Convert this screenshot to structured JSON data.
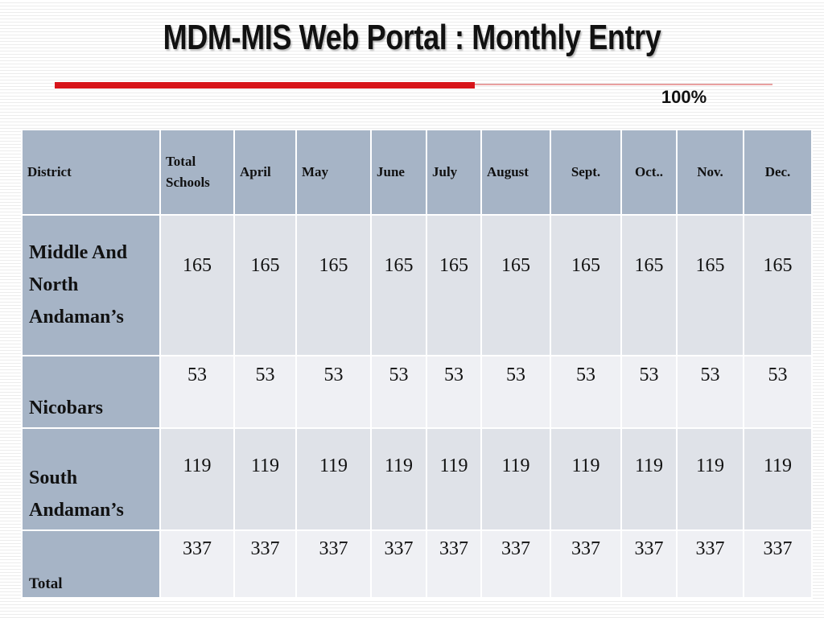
{
  "title": "MDM-MIS Web Portal : Monthly Entry",
  "percent": "100%",
  "table": {
    "headers": [
      "District",
      "Total Schools",
      "April",
      "May",
      "June",
      "July",
      "August",
      "Sept.",
      "Oct..",
      "Nov.",
      "Dec."
    ],
    "rows": [
      {
        "district": "Middle And North Andaman’s",
        "values": [
          "165",
          "165",
          "165",
          "165",
          "165",
          "165",
          "165",
          "165",
          "165",
          "165"
        ]
      },
      {
        "district": "Nicobars",
        "values": [
          "53",
          "53",
          "53",
          "53",
          "53",
          "53",
          "53",
          "53",
          "53",
          "53"
        ]
      },
      {
        "district": "South Andaman’s",
        "values": [
          "119",
          "119",
          "119",
          "119",
          "119",
          "119",
          "119",
          "119",
          "119",
          "119"
        ]
      },
      {
        "district": "Total",
        "values": [
          "337",
          "337",
          "337",
          "337",
          "337",
          "337",
          "337",
          "337",
          "337",
          "337"
        ]
      }
    ]
  },
  "colors": {
    "header_bg": "#a6b4c6",
    "row_odd": "#dfe2e8",
    "row_even": "#eff0f4",
    "accent_red": "#d7141a"
  }
}
